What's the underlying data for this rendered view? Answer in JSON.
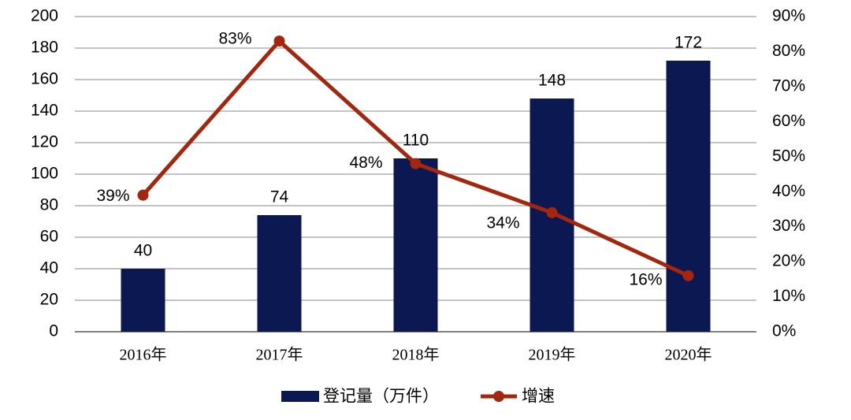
{
  "chart_data": {
    "type": "bar",
    "categories": [
      "2016年",
      "2017年",
      "2018年",
      "2019年",
      "2020年"
    ],
    "series": [
      {
        "name": "登记量（万件）",
        "type": "bar",
        "color": "#0c1852",
        "values": [
          40,
          74,
          110,
          148,
          172
        ]
      },
      {
        "name": "增速",
        "type": "line",
        "color": "#a3270f",
        "axis": "y2",
        "values": [
          39,
          83,
          48,
          34,
          16
        ],
        "value_labels": [
          "39%",
          "83%",
          "48%",
          "34%",
          "16%"
        ]
      }
    ],
    "ylim": [
      0,
      200
    ],
    "yticks": [
      0,
      20,
      40,
      60,
      80,
      100,
      120,
      140,
      160,
      180,
      200
    ],
    "y2lim": [
      0,
      90
    ],
    "y2ticks": [
      {
        "value": 0,
        "label": "0%"
      },
      {
        "value": 10,
        "label": "10%"
      },
      {
        "value": 20,
        "label": "20%"
      },
      {
        "value": 30,
        "label": "30%"
      },
      {
        "value": 40,
        "label": "40%"
      },
      {
        "value": 50,
        "label": "50%"
      },
      {
        "value": 60,
        "label": "60%"
      },
      {
        "value": 70,
        "label": "70%"
      },
      {
        "value": 80,
        "label": "80%"
      },
      {
        "value": 90,
        "label": "90%"
      }
    ],
    "grid": true,
    "legend": "bottom"
  }
}
